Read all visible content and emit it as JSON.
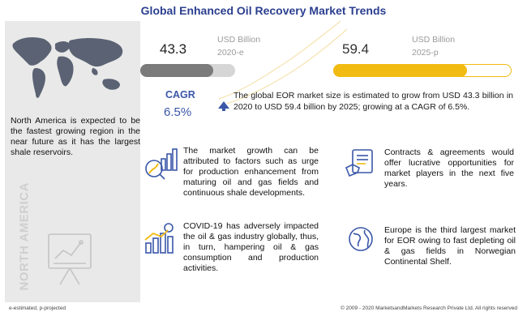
{
  "title": "Global Enhanced Oil Recovery  Market Trends",
  "left_panel": {
    "text": "North America is expected to be the fastest growing region in the near future as it has the largest shale reservoirs.",
    "vertical_label": "NORTH AMERICA"
  },
  "stats": {
    "value_2020": "43.3",
    "unit_2020": "USD Billion",
    "year_2020": "2020-e",
    "value_2025": "59.4",
    "unit_2025": "USD Billion",
    "year_2025": "2025-p",
    "cagr_label": "CAGR",
    "cagr_value": "6.5%",
    "summary": "The global EOR market size is estimated to grow from USD 43.3 billion in 2020 to USD 59.4 billion by 2025; growing at a CAGR of 6.5%."
  },
  "insights": {
    "growth_factors": "The market growth can be attributed to factors such as urge for production enhancement from maturing oil and gas fields and continuous shale developments.",
    "covid": "COVID-19 has adversely impacted the oil & gas industry globally, thus, in turn, hampering oil & gas consumption and production activities.",
    "contracts": "Contracts & agreements would offer lucrative opportunities for market players in the next five years.",
    "europe": "Europe is the third largest market for EOR owing  to fast depleting oil & gas fields in Norwegian Continental Shelf."
  },
  "footer": {
    "left": "e-estimated, p-projected",
    "right": "© 2009 - 2020 MarketsandMarkets Research Private Ltd. All rights reserved"
  },
  "colors": {
    "title": "#2b3f8f",
    "accent_blue": "#3a57a8",
    "bar_2020": "#7b7b7b",
    "bar_2025": "#f2bb12",
    "panel_bg": "#e9e9e9"
  },
  "progress": {
    "bar_2020_fraction": 0.77,
    "bar_2025_fraction": 0.75
  }
}
